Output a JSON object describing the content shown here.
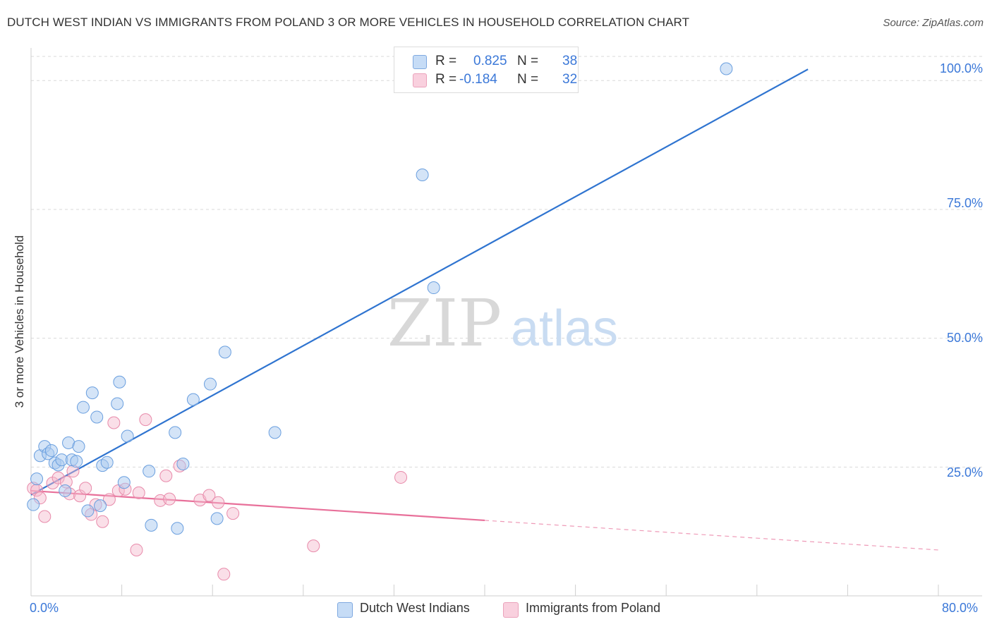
{
  "header": {
    "title": "DUTCH WEST INDIAN VS IMMIGRANTS FROM POLAND 3 OR MORE VEHICLES IN HOUSEHOLD CORRELATION CHART",
    "source": "Source: ZipAtlas.com"
  },
  "watermark": {
    "zip": "ZIP",
    "atlas": "atlas"
  },
  "legend_top": {
    "rows": [
      {
        "r_label": "R =",
        "r_value": "0.825",
        "n_label": "N =",
        "n_value": "38",
        "color": "#a9c9f0"
      },
      {
        "r_label": "R =",
        "r_value": "-0.184",
        "n_label": "N =",
        "n_value": "32",
        "color": "#f5b8cc"
      }
    ]
  },
  "legend_bottom": {
    "items": [
      {
        "label": "Dutch West Indians",
        "color": "#a9c9f0"
      },
      {
        "label": "Immigrants from Poland",
        "color": "#f5b8cc"
      }
    ]
  },
  "colors": {
    "blue_fill": "#a9c9f0",
    "blue_stroke": "#6a9fdf",
    "blue_line": "#2f74d0",
    "pink_fill": "#f5b8cc",
    "pink_stroke": "#e88aaa",
    "pink_line": "#e8709a",
    "grid": "#d9d9d9",
    "tick_label": "#3b78d8"
  },
  "chart_data": {
    "type": "scatter",
    "title": "DUTCH WEST INDIAN VS IMMIGRANTS FROM POLAND 3 OR MORE VEHICLES IN HOUSEHOLD CORRELATION CHART",
    "xlabel": "",
    "ylabel": "3 or more Vehicles in Household",
    "xlim": [
      0,
      80
    ],
    "ylim": [
      0,
      105
    ],
    "x_tick_labels": [
      "0.0%",
      "80.0%"
    ],
    "y_ticks": [
      25,
      50,
      75,
      100
    ],
    "y_tick_labels": [
      "25.0%",
      "50.0%",
      "75.0%",
      "100.0%"
    ],
    "grid": true,
    "legend_position": "bottom",
    "series": [
      {
        "name": "Dutch West Indians",
        "r": 0.825,
        "n": 38,
        "trend": {
          "x": [
            0,
            68.5
          ],
          "y": [
            19.6,
            102.2
          ],
          "dashed_from_x": null
        },
        "points": [
          [
            0.2,
            17.7
          ],
          [
            0.5,
            22.7
          ],
          [
            0.8,
            27.2
          ],
          [
            1.2,
            29.0
          ],
          [
            1.5,
            27.6
          ],
          [
            1.8,
            28.2
          ],
          [
            2.1,
            25.8
          ],
          [
            2.4,
            25.4
          ],
          [
            2.7,
            26.4
          ],
          [
            3.0,
            20.4
          ],
          [
            3.3,
            29.7
          ],
          [
            3.6,
            26.4
          ],
          [
            4.0,
            26.1
          ],
          [
            4.2,
            29.0
          ],
          [
            4.6,
            36.6
          ],
          [
            5.0,
            16.5
          ],
          [
            5.4,
            39.4
          ],
          [
            5.8,
            34.7
          ],
          [
            6.1,
            17.5
          ],
          [
            6.3,
            25.3
          ],
          [
            6.7,
            25.9
          ],
          [
            7.6,
            37.3
          ],
          [
            7.8,
            41.5
          ],
          [
            8.2,
            22.0
          ],
          [
            8.5,
            31.0
          ],
          [
            10.4,
            24.2
          ],
          [
            10.6,
            13.7
          ],
          [
            12.7,
            31.7
          ],
          [
            12.9,
            13.1
          ],
          [
            13.4,
            25.6
          ],
          [
            14.3,
            38.1
          ],
          [
            15.8,
            41.1
          ],
          [
            16.4,
            15.0
          ],
          [
            17.1,
            47.3
          ],
          [
            21.5,
            31.7
          ],
          [
            34.5,
            81.7
          ],
          [
            35.5,
            59.8
          ],
          [
            61.3,
            102.3
          ]
        ]
      },
      {
        "name": "Immigrants from Poland",
        "r": -0.184,
        "n": 32,
        "trend": {
          "x": [
            0,
            80
          ],
          "y": [
            20.4,
            8.9
          ],
          "dashed_from_x": 40.0
        },
        "points": [
          [
            0.2,
            20.9
          ],
          [
            0.5,
            20.5
          ],
          [
            0.8,
            19.0
          ],
          [
            1.2,
            15.4
          ],
          [
            1.9,
            21.9
          ],
          [
            2.4,
            22.9
          ],
          [
            3.1,
            22.1
          ],
          [
            3.4,
            19.8
          ],
          [
            3.7,
            24.2
          ],
          [
            4.3,
            19.4
          ],
          [
            4.8,
            20.9
          ],
          [
            5.3,
            15.8
          ],
          [
            5.7,
            17.7
          ],
          [
            6.3,
            14.4
          ],
          [
            6.9,
            18.7
          ],
          [
            7.3,
            33.6
          ],
          [
            7.7,
            20.4
          ],
          [
            8.3,
            20.7
          ],
          [
            9.3,
            8.9
          ],
          [
            9.5,
            20.0
          ],
          [
            10.1,
            34.2
          ],
          [
            11.4,
            18.5
          ],
          [
            11.9,
            23.3
          ],
          [
            12.2,
            18.8
          ],
          [
            13.1,
            25.2
          ],
          [
            14.9,
            18.6
          ],
          [
            15.7,
            19.5
          ],
          [
            16.5,
            18.1
          ],
          [
            17.0,
            4.2
          ],
          [
            17.8,
            16.0
          ],
          [
            24.9,
            9.7
          ],
          [
            32.6,
            23.0
          ]
        ]
      }
    ]
  }
}
